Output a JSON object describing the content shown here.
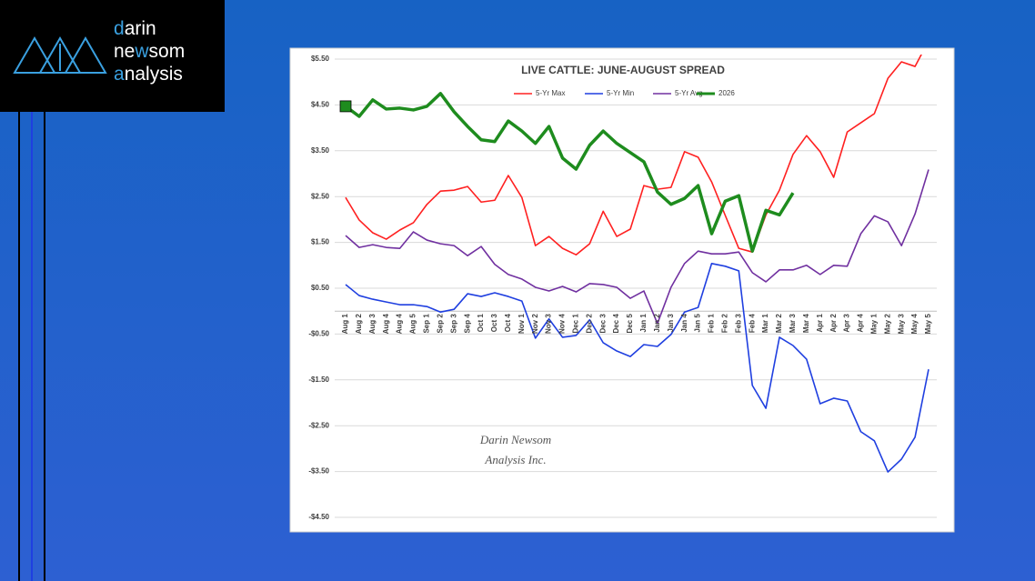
{
  "logo": [
    [
      "d",
      "arin"
    ],
    [
      "ne",
      "w",
      "som"
    ],
    [
      "a",
      "nalysis"
    ]
  ],
  "watermark": [
    "Darin Newsom",
    "Analysis Inc."
  ],
  "chart_data": {
    "type": "line",
    "title": "LIVE CATTLE: JUNE-AUGUST SPREAD",
    "categories": [
      "Aug 1",
      "Aug 2",
      "Aug 3",
      "Aug 4",
      "Aug 4",
      "Aug 5",
      "Sep 1",
      "Sep 2",
      "Sep 3",
      "Sep 4",
      "Oct 1",
      "Oct 3",
      "Oct 4",
      "Nov 1",
      "Nov 2",
      "Nov 3",
      "Nov 4",
      "Dec 1",
      "Dec 2",
      "Dec 3",
      "Dec 4",
      "Dec 5",
      "Jan 1",
      "Jan 2",
      "Jan 3",
      "Jan 4",
      "Jan 5",
      "Feb 1",
      "Feb 2",
      "Feb 3",
      "Feb 4",
      "Mar 1",
      "Mar 2",
      "Mar 3",
      "Mar 4",
      "Apr 1",
      "Apr 2",
      "Apr 3",
      "Apr 4",
      "May 1",
      "May 2",
      "May 3",
      "May 4",
      "May 5"
    ],
    "series": [
      {
        "name": "5-Yr Max",
        "color": "#ff2020",
        "values": [
          2.48,
          1.99,
          1.71,
          1.57,
          1.77,
          1.93,
          2.33,
          2.62,
          2.64,
          2.72,
          2.38,
          2.42,
          2.96,
          2.48,
          1.43,
          1.63,
          1.37,
          1.23,
          1.47,
          2.18,
          1.63,
          1.79,
          2.74,
          2.66,
          2.7,
          3.48,
          3.36,
          2.82,
          2.09,
          1.37,
          1.29,
          2.1,
          2.64,
          3.42,
          3.83,
          3.48,
          2.92,
          3.91,
          4.11,
          4.31,
          5.08,
          5.44,
          5.34,
          5.9
        ]
      },
      {
        "name": "5-Yr Min",
        "color": "#1f3fe0",
        "values": [
          0.58,
          0.34,
          0.26,
          0.2,
          0.14,
          0.14,
          0.1,
          -0.02,
          0.04,
          0.38,
          0.32,
          0.4,
          0.32,
          0.22,
          -0.59,
          -0.17,
          -0.57,
          -0.53,
          -0.19,
          -0.69,
          -0.87,
          -0.99,
          -0.73,
          -0.77,
          -0.51,
          -0.02,
          0.08,
          1.04,
          0.98,
          0.88,
          -1.62,
          -2.12,
          -0.57,
          -0.75,
          -1.05,
          -2.02,
          -1.9,
          -1.96,
          -2.63,
          -2.83,
          -3.51,
          -3.23,
          -2.75,
          -1.27
        ]
      },
      {
        "name": "5-Yr Avg",
        "color": "#7030a0",
        "values": [
          1.65,
          1.39,
          1.45,
          1.39,
          1.37,
          1.73,
          1.55,
          1.47,
          1.43,
          1.21,
          1.41,
          1.02,
          0.8,
          0.7,
          0.52,
          0.44,
          0.54,
          0.42,
          0.6,
          0.58,
          0.52,
          0.28,
          0.44,
          -0.27,
          0.52,
          1.04,
          1.31,
          1.25,
          1.25,
          1.29,
          0.84,
          0.64,
          0.9,
          0.9,
          1.0,
          0.8,
          1.0,
          0.98,
          1.69,
          2.08,
          1.95,
          1.43,
          2.12,
          3.09
        ]
      },
      {
        "name": "2026",
        "color": "#1e8c1e",
        "values": [
          4.47,
          4.25,
          4.61,
          4.41,
          4.43,
          4.39,
          4.47,
          4.75,
          4.35,
          4.03,
          3.74,
          3.7,
          4.15,
          3.93,
          3.66,
          4.03,
          3.34,
          3.1,
          3.62,
          3.93,
          3.66,
          3.46,
          3.26,
          2.6,
          2.33,
          2.46,
          2.74,
          1.69,
          2.4,
          2.52,
          1.31,
          2.2,
          2.1,
          2.58,
          null,
          null,
          null,
          null,
          null,
          null,
          null,
          null,
          null,
          null
        ]
      }
    ],
    "ylim": [
      -4.5,
      5.5
    ],
    "yticks": [
      {
        "value": 5.5,
        "label": "$5.50"
      },
      {
        "value": 4.5,
        "label": "$4.50"
      },
      {
        "value": 3.5,
        "label": "$3.50"
      },
      {
        "value": 2.5,
        "label": "$2.50"
      },
      {
        "value": 1.5,
        "label": "$1.50"
      },
      {
        "value": 0.5,
        "label": "$0.50"
      },
      {
        "value": -0.5,
        "label": "-$0.50"
      },
      {
        "value": -1.5,
        "label": "-$1.50"
      },
      {
        "value": -2.5,
        "label": "-$2.50"
      },
      {
        "value": -3.5,
        "label": "-$3.50"
      },
      {
        "value": -4.5,
        "label": "-$4.50"
      }
    ],
    "grid": true,
    "legend": "top"
  }
}
